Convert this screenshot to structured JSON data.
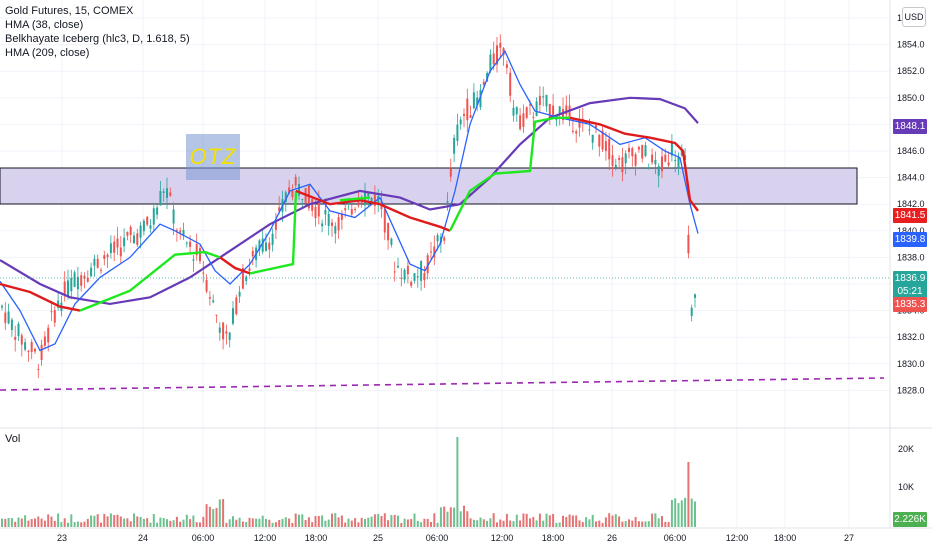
{
  "legend": {
    "title": "Gold Futures, 15, COMEX",
    "indicators": [
      "HMA (38, close)",
      "Belkhayate Iceberg (hlc3, D, 1.618, 5)",
      "HMA (209, close)"
    ]
  },
  "volume_label": "Vol",
  "currency": "USD",
  "zone_label": "OTZ",
  "price_axis": {
    "ticks": [
      "1856.0",
      "1854.0",
      "1852.0",
      "1850.0",
      "1848.0",
      "1846.0",
      "1844.0",
      "1842.0",
      "1840.0",
      "1838.0",
      "1836.0",
      "1834.0",
      "1832.0",
      "1830.0",
      "1828.0"
    ]
  },
  "volume_axis": {
    "ticks": [
      "20K",
      "10K"
    ]
  },
  "time_axis": {
    "labels": [
      "23",
      "24",
      "06:00",
      "12:00",
      "18:00",
      "25",
      "06:00",
      "12:00",
      "18:00",
      "26",
      "06:00",
      "12:00",
      "18:00",
      "27"
    ]
  },
  "price_labels": [
    {
      "text": "1848.1",
      "color": "#673ab7"
    },
    {
      "text": "1841.5",
      "color": "#e91e1e"
    },
    {
      "text": "1839.8",
      "color": "#2962ff"
    },
    {
      "text": "1836.9",
      "color": "#26a69a"
    },
    {
      "text": "05:21",
      "color": "#26a69a"
    },
    {
      "text": "1835.3",
      "color": "#ef5350"
    },
    {
      "text": "2.226K",
      "color": "#4caf50"
    }
  ],
  "colors": {
    "up": "#26a69a",
    "down": "#ef5350",
    "hma38": "#2962ff",
    "hma209": "#673ab7",
    "iceberg_up": "#1ee81e",
    "iceberg_down": "#e01b1b",
    "zone": "#d1c4e9"
  },
  "chart_data": {
    "type": "candlestick",
    "interval": "15",
    "ylim": [
      1827,
      1857
    ],
    "zone": {
      "from": 1841.7,
      "to": 1844.4
    },
    "dashed_trend": {
      "from": 1829.2,
      "to": 1829.6
    },
    "volume_max": "20K"
  }
}
